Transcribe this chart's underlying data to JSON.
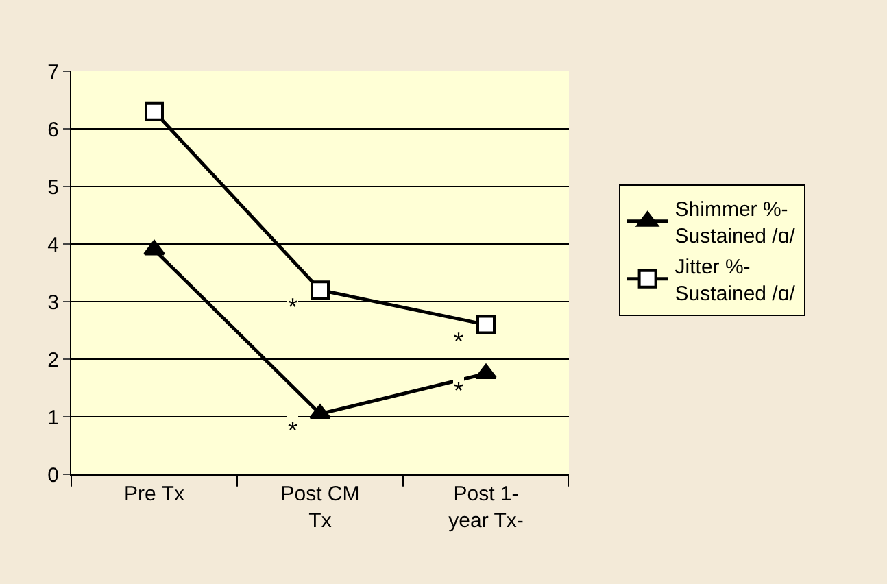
{
  "chart_data": {
    "type": "line",
    "categories": [
      "Pre Tx",
      "Post CM\nTx",
      "Post 1-\nyear Tx-"
    ],
    "series": [
      {
        "name": "Shimmer %-\nSustained /ɑ/",
        "color": "#000000",
        "marker": "triangle",
        "values": [
          3.9,
          1.05,
          1.75
        ]
      },
      {
        "name": "Jitter %-\nSustained /ɑ/",
        "color": "#000000",
        "marker": "square",
        "values": [
          6.3,
          3.2,
          2.6
        ]
      }
    ],
    "annotations": [
      {
        "text": "*",
        "x": "Post CM\nTx",
        "y": 3.2
      },
      {
        "text": "*",
        "x": "Post 1-\nyear Tx-",
        "y": 2.6
      },
      {
        "text": "*",
        "x": "Post CM\nTx",
        "y": 1.05
      },
      {
        "text": "*",
        "x": "Post 1-\nyear Tx-",
        "y": 1.75
      }
    ],
    "ylim": [
      0,
      7
    ],
    "yticks": [
      0,
      1,
      2,
      3,
      4,
      5,
      6,
      7
    ],
    "grid": "y",
    "legend": "right",
    "line_style": "solid"
  }
}
